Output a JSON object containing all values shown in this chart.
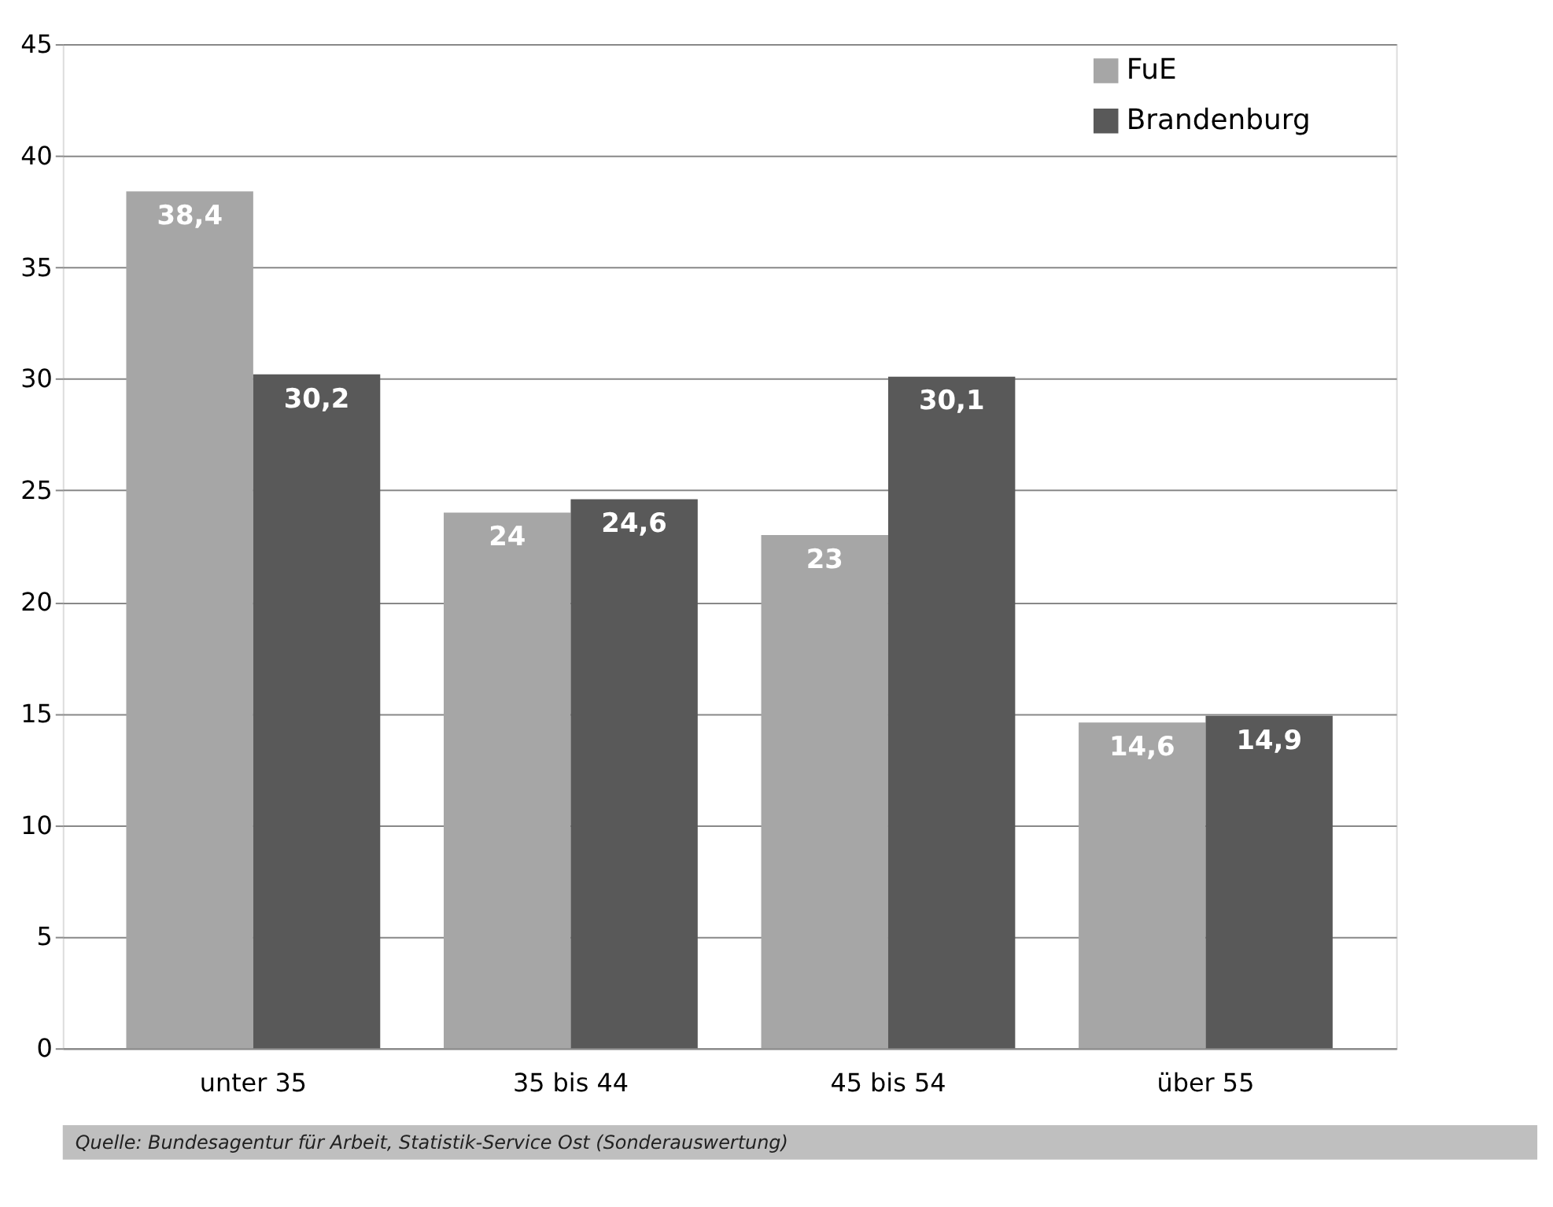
{
  "chart_data": {
    "type": "bar",
    "categories": [
      "unter 35",
      "35 bis 44",
      "45 bis 54",
      "über 55"
    ],
    "series": [
      {
        "name": "FuE",
        "color": "#a6a6a6",
        "values": [
          38.4,
          24,
          23,
          14.6
        ],
        "value_labels": [
          "38,4",
          "24",
          "23",
          "14,6"
        ]
      },
      {
        "name": "Brandenburg",
        "color": "#595959",
        "values": [
          30.2,
          24.6,
          30.1,
          14.9
        ],
        "value_labels": [
          "30,2",
          "24,6",
          "30,1",
          "14,9"
        ]
      }
    ],
    "ylim": [
      0,
      45
    ],
    "yticks": [
      0,
      5,
      10,
      15,
      20,
      25,
      30,
      35,
      40,
      45
    ],
    "grid": "y",
    "legend": "top right",
    "annotations": [
      "Quelle:    Bundesagentur für Arbeit, Statistik-Service Ost (Sonderauswertung)"
    ]
  }
}
